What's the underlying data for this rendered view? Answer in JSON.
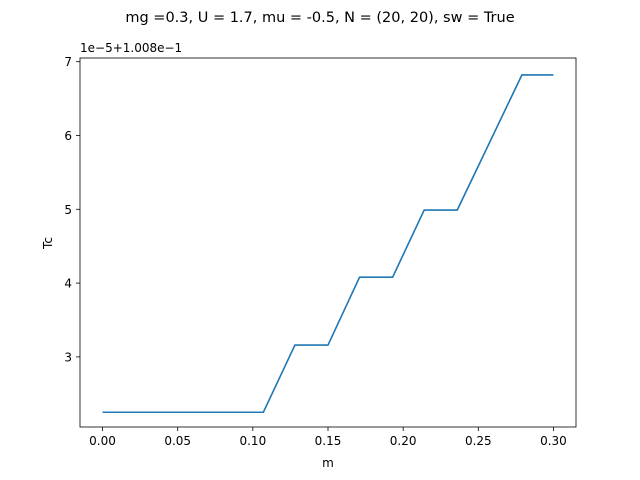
{
  "chart_data": {
    "type": "line",
    "title": "mg =0.3, U = 1.7, mu = -0.5, N = (20, 20), sw = True",
    "xlabel": "m",
    "ylabel": "Tc",
    "offset_text": "1e−5+1.008e−1",
    "xlim": [
      -0.015,
      0.315
    ],
    "ylim": [
      2.05,
      7.05
    ],
    "y_display_scale": "value = 0.1008 + displayed * 1e-5",
    "grid": false,
    "legend": "none",
    "x_ticks": [
      0.0,
      0.05,
      0.1,
      0.15,
      0.2,
      0.25,
      0.3
    ],
    "x_tick_labels": [
      "0.00",
      "0.05",
      "0.10",
      "0.15",
      "0.20",
      "0.25",
      "0.30"
    ],
    "y_ticks": [
      3,
      4,
      5,
      6,
      7
    ],
    "y_tick_labels": [
      "3",
      "4",
      "5",
      "6",
      "7"
    ],
    "series": [
      {
        "color": "#1f77b4",
        "x": [
          0.0,
          0.107,
          0.128,
          0.15,
          0.171,
          0.193,
          0.214,
          0.236,
          0.279,
          0.3
        ],
        "y": [
          2.25,
          2.25,
          3.16,
          3.16,
          4.08,
          4.08,
          4.99,
          4.99,
          6.82,
          6.82
        ]
      }
    ]
  }
}
